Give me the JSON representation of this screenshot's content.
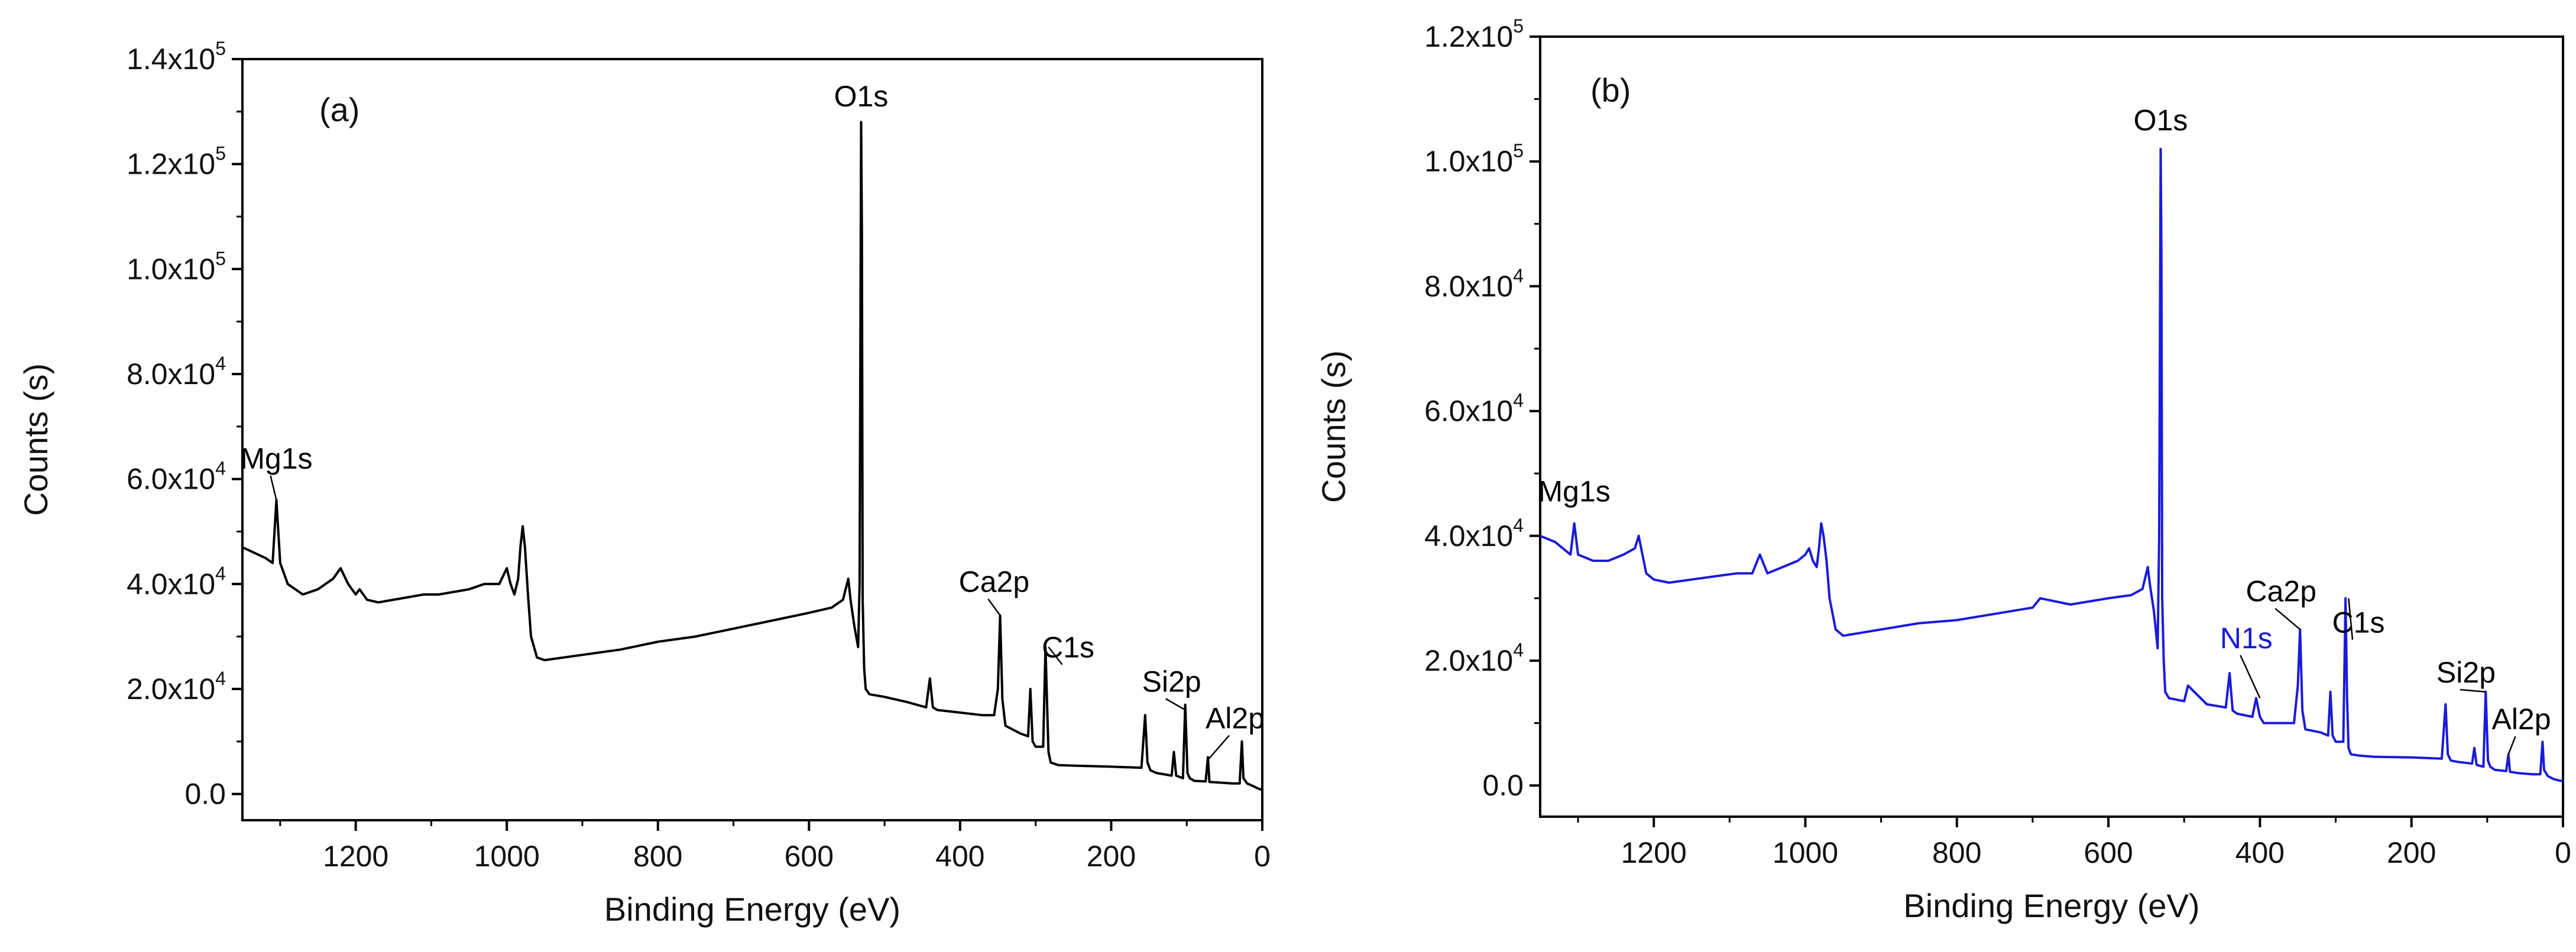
{
  "chart_data": [
    {
      "type": "line",
      "panel_label": "(a)",
      "color": "#000000",
      "xlabel": "Binding Energy (eV)",
      "ylabel": "Counts (s)",
      "xlim": [
        1350,
        0
      ],
      "ylim": [
        -5000,
        140000
      ],
      "x_reversed": true,
      "x_ticks": [
        1200,
        1000,
        800,
        600,
        400,
        200,
        0
      ],
      "y_ticks": [
        {
          "mant": "0.0",
          "exp": ""
        },
        {
          "mant": "2.0x10",
          "exp": "4"
        },
        {
          "mant": "4.0x10",
          "exp": "4"
        },
        {
          "mant": "6.0x10",
          "exp": "4"
        },
        {
          "mant": "8.0x10",
          "exp": "4"
        },
        {
          "mant": "1.0x10",
          "exp": "5"
        },
        {
          "mant": "1.2x10",
          "exp": "5"
        },
        {
          "mant": "1.4x10",
          "exp": "5"
        }
      ],
      "y_tick_values": [
        0,
        20000,
        40000,
        60000,
        80000,
        100000,
        120000,
        140000
      ],
      "grid": false,
      "series": [
        {
          "x": [
            1350,
            1320,
            1310,
            1305,
            1300,
            1290,
            1270,
            1250,
            1230,
            1220,
            1210,
            1200,
            1195,
            1185,
            1170,
            1150,
            1130,
            1110,
            1090,
            1070,
            1050,
            1030,
            1010,
            1000,
            995,
            990,
            985,
            982,
            979,
            976,
            972,
            968,
            960,
            950,
            900,
            850,
            800,
            750,
            700,
            650,
            600,
            570,
            555,
            548,
            545,
            540,
            535,
            533,
            531,
            530,
            529,
            527,
            525,
            520,
            500,
            470,
            445,
            440,
            436,
            430,
            400,
            370,
            355,
            350,
            347,
            344,
            340,
            320,
            310,
            307,
            304,
            300,
            290,
            287,
            285,
            283,
            280,
            270,
            250,
            200,
            160,
            155,
            152,
            148,
            140,
            120,
            117,
            114,
            105,
            102,
            99,
            96,
            90,
            75,
            72,
            70,
            60,
            40,
            30,
            27,
            25,
            20,
            12,
            5,
            0
          ],
          "y": [
            47000,
            45000,
            44000,
            56000,
            44000,
            40000,
            38000,
            39000,
            41000,
            43000,
            40000,
            38000,
            39000,
            37000,
            36500,
            37000,
            37500,
            38000,
            38000,
            38500,
            39000,
            40000,
            40000,
            43000,
            40000,
            38000,
            41000,
            47000,
            51000,
            47000,
            38000,
            30000,
            26000,
            25500,
            26500,
            27500,
            29000,
            30000,
            31500,
            33000,
            34500,
            35500,
            37000,
            41000,
            37000,
            32000,
            28000,
            40000,
            128000,
            107000,
            37000,
            24000,
            20000,
            19000,
            18500,
            17500,
            16500,
            22000,
            16500,
            16000,
            15500,
            15000,
            15000,
            20000,
            34000,
            18000,
            13000,
            11500,
            11000,
            20000,
            10000,
            9000,
            9000,
            28000,
            18000,
            8000,
            6000,
            5500,
            5400,
            5200,
            5000,
            15000,
            6000,
            4500,
            4000,
            3500,
            8000,
            3500,
            3000,
            17000,
            4000,
            3000,
            2500,
            2400,
            7000,
            2300,
            2200,
            2000,
            2000,
            10000,
            3000,
            2000,
            1500,
            1000,
            800
          ]
        }
      ],
      "annotations": [
        {
          "text": "O1s",
          "x": 531,
          "y": 131000,
          "tip": [
            531,
            127000
          ],
          "color": "#000000"
        },
        {
          "text": "Mg1s",
          "x": 1305,
          "y": 62000,
          "tip": [
            1305,
            56000
          ],
          "color": "#000000"
        },
        {
          "text": "Ca2p",
          "x": 355,
          "y": 38500,
          "tip": [
            347,
            34000
          ],
          "color": "#000000"
        },
        {
          "text": "C1s",
          "x": 257,
          "y": 26000,
          "tip": [
            283,
            28000
          ],
          "color": "#000000"
        },
        {
          "text": "Si2p",
          "x": 120,
          "y": 19500,
          "tip": [
            102,
            16000
          ],
          "color": "#000000"
        },
        {
          "text": "Al2p",
          "x": 36,
          "y": 12500,
          "tip": [
            72,
            6500
          ],
          "color": "#000000"
        }
      ]
    },
    {
      "type": "line",
      "panel_label": "(b)",
      "color": "#1a1adb",
      "xlabel": "Binding Energy (eV)",
      "ylabel": "Counts (s)",
      "xlim": [
        1350,
        0
      ],
      "ylim": [
        -5000,
        120000
      ],
      "x_reversed": true,
      "x_ticks": [
        1200,
        1000,
        800,
        600,
        400,
        200,
        0
      ],
      "y_ticks": [
        {
          "mant": "0.0",
          "exp": ""
        },
        {
          "mant": "2.0x10",
          "exp": "4"
        },
        {
          "mant": "4.0x10",
          "exp": "4"
        },
        {
          "mant": "6.0x10",
          "exp": "4"
        },
        {
          "mant": "8.0x10",
          "exp": "4"
        },
        {
          "mant": "1.0x10",
          "exp": "5"
        },
        {
          "mant": "1.2x10",
          "exp": "5"
        }
      ],
      "y_tick_values": [
        0,
        20000,
        40000,
        60000,
        80000,
        100000,
        120000
      ],
      "grid": false,
      "series": [
        {
          "x": [
            1350,
            1330,
            1310,
            1305,
            1300,
            1280,
            1260,
            1240,
            1225,
            1220,
            1215,
            1210,
            1200,
            1180,
            1150,
            1120,
            1090,
            1070,
            1060,
            1050,
            1030,
            1010,
            1000,
            995,
            990,
            985,
            982,
            979,
            976,
            972,
            968,
            960,
            950,
            900,
            850,
            800,
            750,
            700,
            690,
            650,
            600,
            570,
            555,
            548,
            545,
            540,
            535,
            533,
            531,
            530,
            529,
            527,
            525,
            520,
            500,
            495,
            470,
            445,
            440,
            436,
            430,
            410,
            405,
            400,
            395,
            370,
            355,
            350,
            347,
            344,
            340,
            320,
            310,
            307,
            304,
            300,
            290,
            287,
            285,
            283,
            280,
            270,
            250,
            200,
            160,
            155,
            152,
            148,
            140,
            120,
            117,
            114,
            105,
            102,
            99,
            96,
            90,
            75,
            72,
            70,
            60,
            40,
            30,
            27,
            25,
            20,
            12,
            5,
            0
          ],
          "y": [
            40000,
            39000,
            37000,
            42000,
            37000,
            36000,
            36000,
            37000,
            38000,
            40000,
            37000,
            34000,
            33000,
            32500,
            33000,
            33500,
            34000,
            34000,
            37000,
            34000,
            35000,
            36000,
            37000,
            38000,
            36000,
            35000,
            38000,
            42000,
            40000,
            36000,
            30000,
            25000,
            24000,
            25000,
            26000,
            26500,
            27500,
            28500,
            30000,
            29000,
            30000,
            30500,
            31500,
            35000,
            32000,
            28000,
            22000,
            40000,
            102000,
            85000,
            30000,
            20000,
            15000,
            14000,
            13500,
            16000,
            13000,
            12500,
            18000,
            12000,
            11500,
            11000,
            14000,
            11000,
            10000,
            10000,
            10000,
            16000,
            25000,
            12000,
            9000,
            8500,
            8000,
            15000,
            8000,
            7000,
            7000,
            30000,
            14000,
            6000,
            5000,
            4800,
            4600,
            4500,
            4300,
            13000,
            5000,
            4000,
            3800,
            3500,
            6000,
            3300,
            3000,
            15000,
            4000,
            3000,
            2500,
            2300,
            5000,
            2200,
            2000,
            1800,
            1800,
            7000,
            2500,
            1500,
            1000,
            800,
            700
          ]
        }
      ],
      "annotations": [
        {
          "text": "O1s",
          "x": 531,
          "y": 105000,
          "tip": [
            531,
            102000
          ],
          "color": "#000000"
        },
        {
          "text": "Mg1s",
          "x": 1305,
          "y": 45500,
          "tip": [
            1305,
            42000
          ],
          "color": "#000000"
        },
        {
          "text": "Ca2p",
          "x": 372,
          "y": 29500,
          "tip": [
            347,
            25000
          ],
          "color": "#000000"
        },
        {
          "text": "N1s",
          "x": 418,
          "y": 22000,
          "tip": [
            400,
            14000
          ],
          "color": "#1a1adb"
        },
        {
          "text": "C1s",
          "x": 270,
          "y": 24500,
          "tip": [
            283,
            30000
          ],
          "color": "#000000"
        },
        {
          "text": "Si2p",
          "x": 128,
          "y": 16500,
          "tip": [
            102,
            15000
          ],
          "color": "#000000"
        },
        {
          "text": "Al2p",
          "x": 55,
          "y": 9000,
          "tip": [
            72,
            5000
          ],
          "color": "#000000"
        }
      ]
    }
  ]
}
